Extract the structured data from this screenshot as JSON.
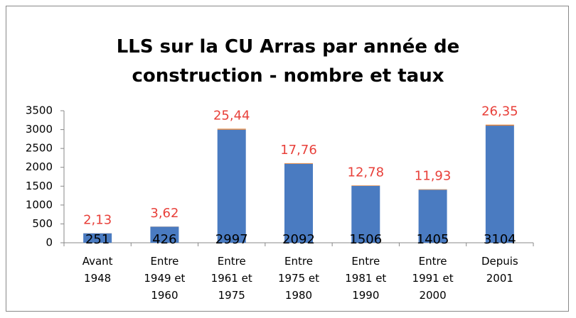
{
  "chart_data": {
    "type": "bar",
    "stacked": true,
    "title": "LLS sur la CU Arras par année de construction - nombre et taux",
    "categories": [
      "Avant 1948",
      "Entre 1949 et 1960",
      "Entre 1961 et 1975",
      "Entre 1975 et 1980",
      "Entre 1981 et 1990",
      "Entre 1991 et 2000",
      "Depuis 2001"
    ],
    "series": [
      {
        "color": "#4a7bc1",
        "values": [
          251,
          426,
          2997,
          2092,
          1506,
          1405,
          3104
        ]
      },
      {
        "color": "#e0823a",
        "values": [
          2.13,
          3.62,
          25.44,
          17.76,
          12.78,
          11.93,
          26.35
        ],
        "value_labels": [
          "2,13",
          "3,62",
          "25,44",
          "17,76",
          "12,78",
          "11,93",
          "26,35"
        ]
      }
    ],
    "ylim": [
      0,
      3500
    ],
    "yticks": [
      0,
      500,
      1000,
      1500,
      2000,
      2500,
      3000,
      3500
    ],
    "grid": false
  }
}
